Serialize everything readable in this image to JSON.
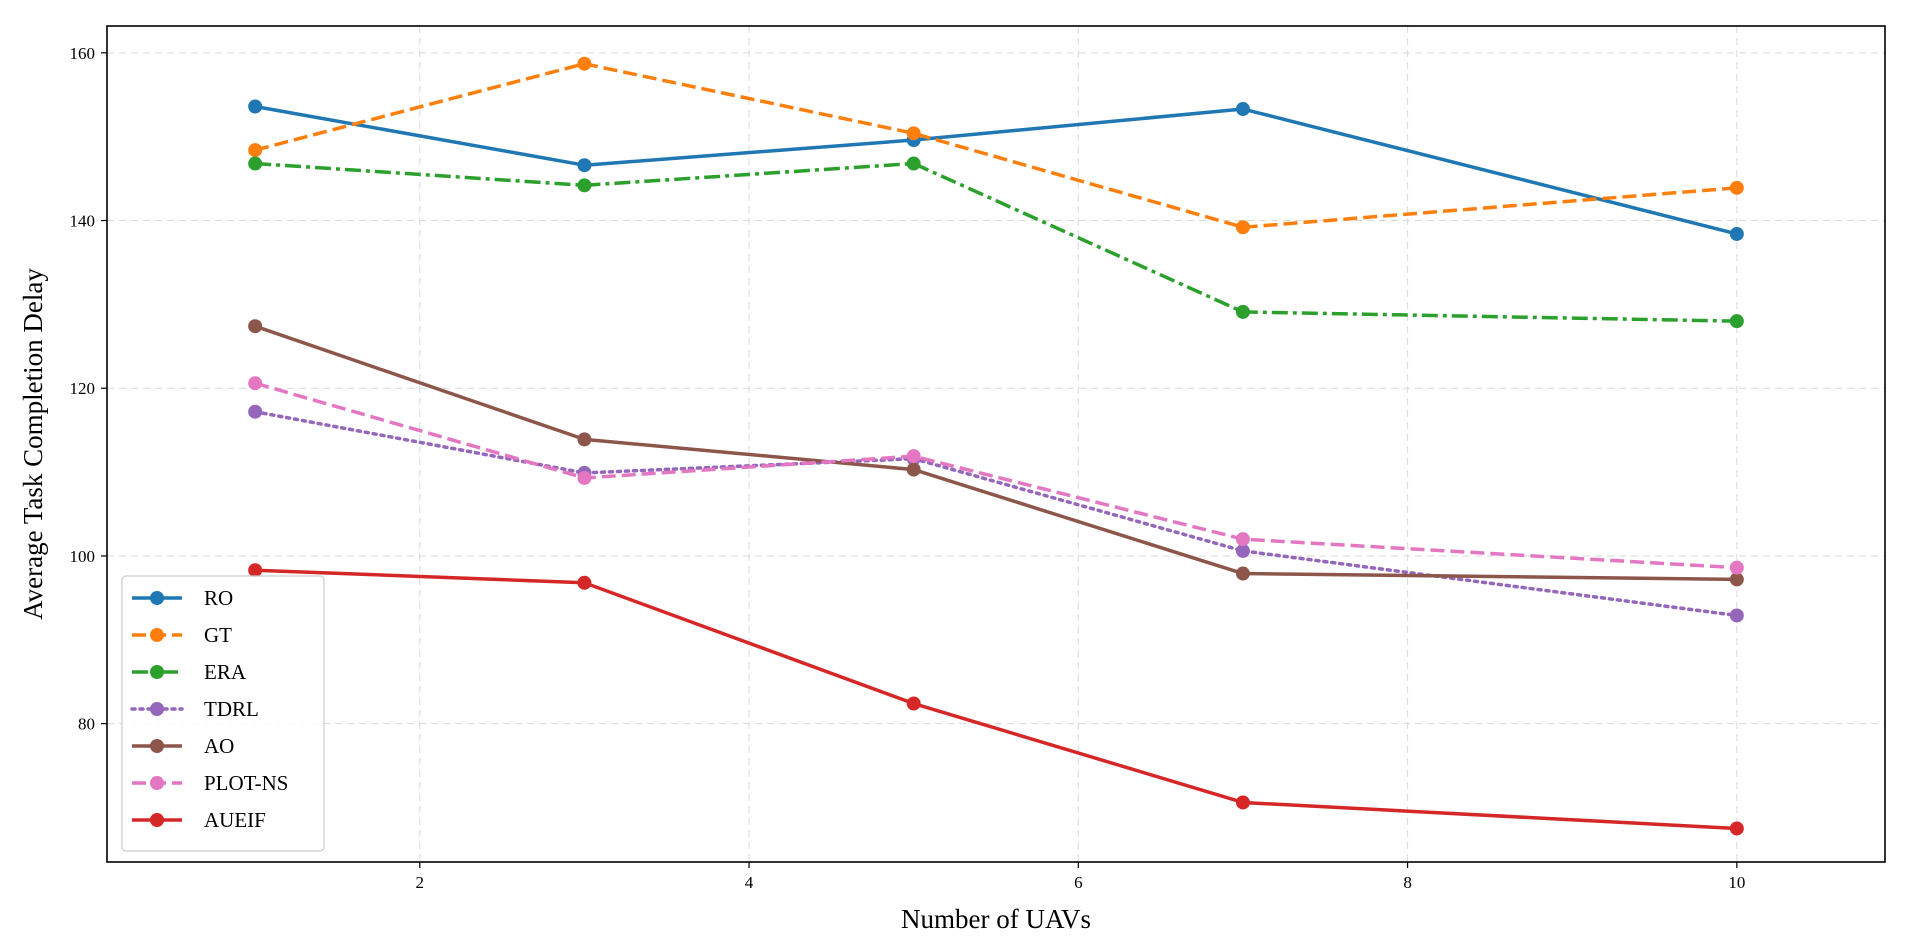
{
  "chart_data": {
    "type": "line",
    "title": "",
    "xlabel": "Number of UAVs",
    "ylabel": "Average Task Completion Delay",
    "x": [
      1,
      3,
      5,
      7,
      10
    ],
    "xlim": [
      0.1,
      10.9
    ],
    "ylim": [
      63.5,
      163.2
    ],
    "xticks": [
      2,
      4,
      6,
      8,
      10
    ],
    "yticks": [
      80,
      100,
      120,
      140,
      160
    ],
    "grid": true,
    "legend_position": "lower-left",
    "series": [
      {
        "name": "RO",
        "color": "#1f77b4",
        "dash": "solid",
        "values": [
          153.6,
          146.6,
          149.6,
          153.3,
          138.4
        ]
      },
      {
        "name": "GT",
        "color": "#ff7f0e",
        "dash": "dashed",
        "values": [
          148.4,
          158.7,
          150.4,
          139.2,
          143.9
        ]
      },
      {
        "name": "ERA",
        "color": "#2ca02c",
        "dash": "dashdot",
        "values": [
          146.8,
          144.2,
          146.8,
          129.1,
          128.0
        ]
      },
      {
        "name": "TDRL",
        "color": "#9467bd",
        "dash": "dotted",
        "values": [
          117.2,
          109.9,
          111.6,
          100.6,
          92.9
        ]
      },
      {
        "name": "AO",
        "color": "#8c564b",
        "dash": "solid",
        "values": [
          127.4,
          113.9,
          110.3,
          97.9,
          97.2
        ]
      },
      {
        "name": "PLOT-NS",
        "color": "#e377c2",
        "dash": "dashed",
        "values": [
          120.6,
          109.3,
          111.9,
          102.0,
          98.6
        ]
      },
      {
        "name": "AUEIF",
        "color": "#d62728",
        "dash": "solid",
        "values": [
          98.3,
          96.8,
          82.4,
          70.6,
          67.5
        ]
      }
    ]
  }
}
